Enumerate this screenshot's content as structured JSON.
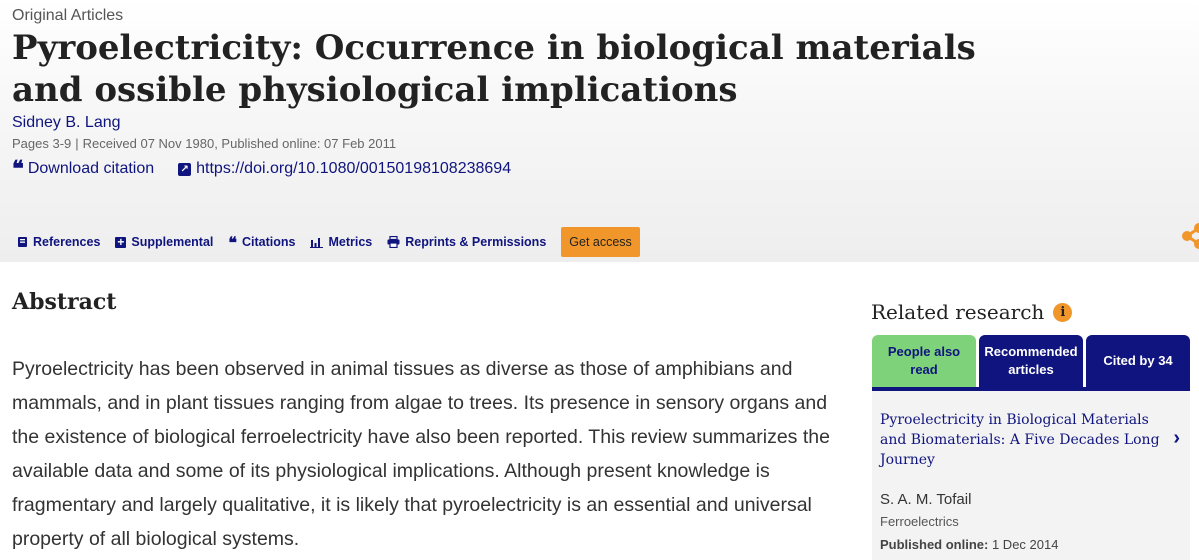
{
  "article": {
    "type": "Original Articles",
    "title": "Pyroelectricity: Occurrence in biological materials and ossible physiological implications",
    "author": "Sidney B. Lang",
    "pages": "Pages 3-9",
    "received": "Received 07 Nov 1980",
    "published": "Published online: 07 Feb 2011",
    "download_citation": "Download citation",
    "doi": "https://doi.org/10.1080/00150198108238694"
  },
  "tabs": {
    "references": "References",
    "supplemental": "Supplemental",
    "citations": "Citations",
    "metrics": "Metrics",
    "reprints": "Reprints & Permissions",
    "get_access": "Get access"
  },
  "abstract": {
    "heading": "Abstract",
    "text": "Pyroelectricity has been observed in animal tissues as diverse as those of amphibians and mammals, and in plant tissues ranging from algae to trees. Its presence in sensory organs and the existence of biological ferroelectricity have also been reported. This review summarizes the available data and some of its physiological implications. Although present knowledge is fragmentary and largely qualitative, it is likely that pyroelectricity is an essential and universal property of all biological systems."
  },
  "related": {
    "heading": "Related research",
    "tabs": [
      "People also read",
      "Recommended articles",
      "Cited by 34"
    ],
    "item": {
      "title": "Pyroelectricity in Biological Materials and Biomaterials: A Five Decades Long Journey",
      "author": "S. A. M. Tofail",
      "journal": "Ferroelectrics",
      "published_label": "Published online:",
      "published_date": "1 Dec 2014"
    }
  },
  "colors": {
    "link": "#10147e",
    "accent": "#f0962a",
    "active_tab": "#7ed27a"
  },
  "icons": [
    "quote-icon",
    "external-link-icon",
    "book-icon",
    "plus-icon",
    "bar-chart-icon",
    "printer-icon",
    "share-icon",
    "info-icon",
    "chevron-right-icon"
  ]
}
